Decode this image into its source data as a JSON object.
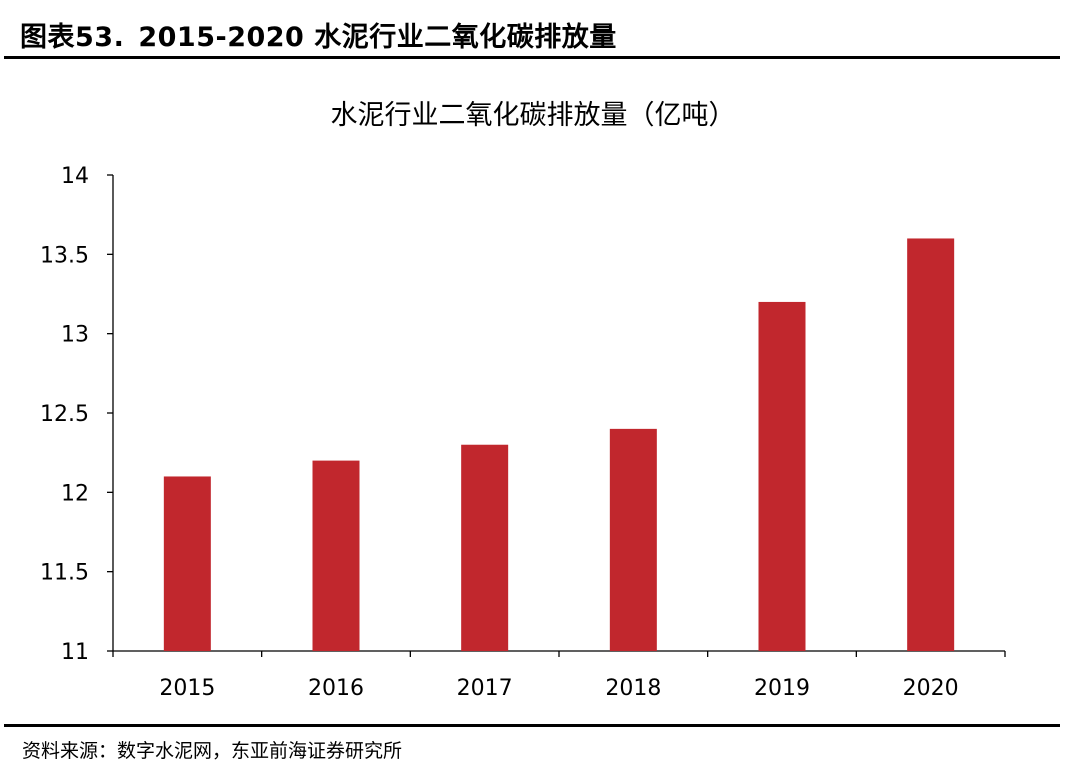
{
  "header": {
    "figure_number": "图表53.",
    "title": "2015-2020 水泥行业二氧化碳排放量"
  },
  "source": "资料来源：数字水泥网，东亚前海证券研究所",
  "colors": {
    "bar": "#c1272d",
    "axis": "#000000"
  },
  "chart_data": {
    "type": "bar",
    "title": "水泥行业二氧化碳排放量（亿吨）",
    "xlabel": "",
    "ylabel": "",
    "categories": [
      "2015",
      "2016",
      "2017",
      "2018",
      "2019",
      "2020"
    ],
    "values": [
      12.1,
      12.2,
      12.3,
      12.4,
      13.2,
      13.6
    ],
    "ylim": [
      11,
      14
    ],
    "yticks": [
      "11",
      "11.5",
      "12",
      "12.5",
      "13",
      "13.5",
      "14"
    ],
    "grid": false,
    "legend": "none"
  }
}
